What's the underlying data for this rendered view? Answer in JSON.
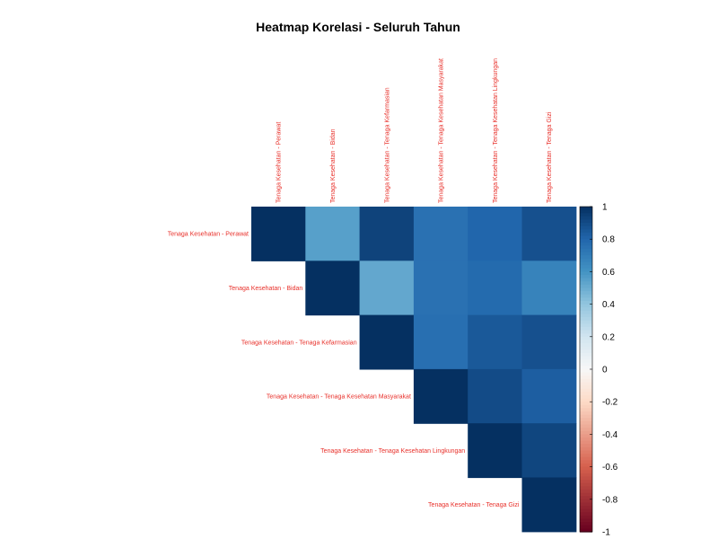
{
  "chart_data": {
    "type": "heatmap",
    "title": "Heatmap Korelasi - Seluruh Tahun",
    "variables": [
      "Tenaga Kesehatan - Perawat",
      "Tenaga Kesehatan - Bidan",
      "Tenaga Kesehatan - Tenaga Kefarmasian",
      "Tenaga Kesehatan - Tenaga Kesehatan Masyarakat",
      "Tenaga Kesehatan - Tenaga Kesehatan Lingkungan",
      "Tenaga Kesehatan - Tenaga Gizi"
    ],
    "matrix_style": "upper",
    "values": [
      [
        1.0,
        0.55,
        0.93,
        0.75,
        0.8,
        0.88
      ],
      [
        null,
        1.0,
        0.52,
        0.75,
        0.78,
        0.67
      ],
      [
        null,
        null,
        1.0,
        0.76,
        0.85,
        0.88
      ],
      [
        null,
        null,
        null,
        1.0,
        0.9,
        0.83
      ],
      [
        null,
        null,
        null,
        null,
        1.0,
        0.92
      ],
      [
        null,
        null,
        null,
        null,
        null,
        1.0
      ]
    ],
    "colorbar": {
      "range": [
        -1,
        1
      ],
      "ticks": [
        "1",
        "0.8",
        "0.6",
        "0.4",
        "0.2",
        "0",
        "-0.2",
        "-0.4",
        "-0.6",
        "-0.8",
        "-1"
      ],
      "colors": {
        "neg1": "#67001F",
        "neg06": "#D6604D",
        "neg02": "#FDDBC7",
        "zero": "#F7F7F7",
        "pos02": "#D1E5F0",
        "pos04": "#92C5DE",
        "pos06": "#4393C3",
        "pos08": "#2166AC",
        "pos1": "#053061"
      }
    },
    "label_color": "#E8302A"
  }
}
